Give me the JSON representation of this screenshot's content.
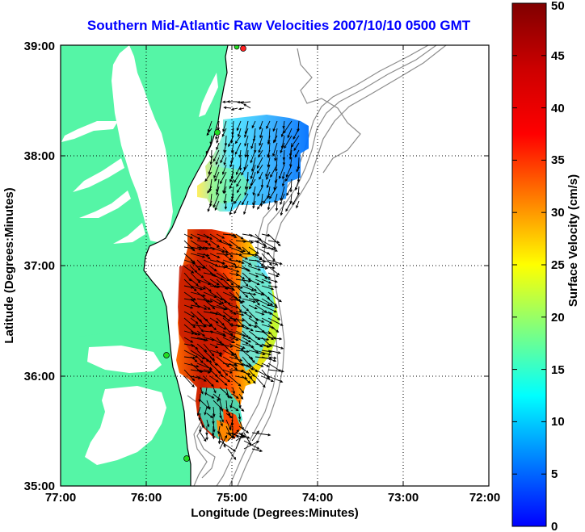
{
  "title": "Southern Mid-Atlantic Raw Velocities 2007/10/10 0500 GMT",
  "xlabel": "Longitude (Degrees:Minutes)",
  "ylabel": "Latitude (Degrees:Minutes)",
  "colorbar": {
    "label": "Surface Velocity (cm/s)",
    "ticks": [
      "0",
      "5",
      "10",
      "15",
      "20",
      "25",
      "30",
      "35",
      "40",
      "45",
      "50"
    ],
    "range": [
      0,
      50
    ],
    "colormap": "jet"
  },
  "map": {
    "xlim": [
      -77,
      -72
    ],
    "ylim": [
      35,
      39
    ],
    "x_ticks": [
      "77:00",
      "76:00",
      "75:00",
      "74:00",
      "73:00",
      "72:00"
    ],
    "y_ticks": [
      "35:00",
      "36:00",
      "37:00",
      "38:00",
      "39:00"
    ],
    "grid": "dotted",
    "land_color": "#55f5a6",
    "coast_color": "#000000",
    "bathymetry_color": "#8c8c8c",
    "station_colors": [
      "#22dd22",
      "#ff2222"
    ]
  }
}
